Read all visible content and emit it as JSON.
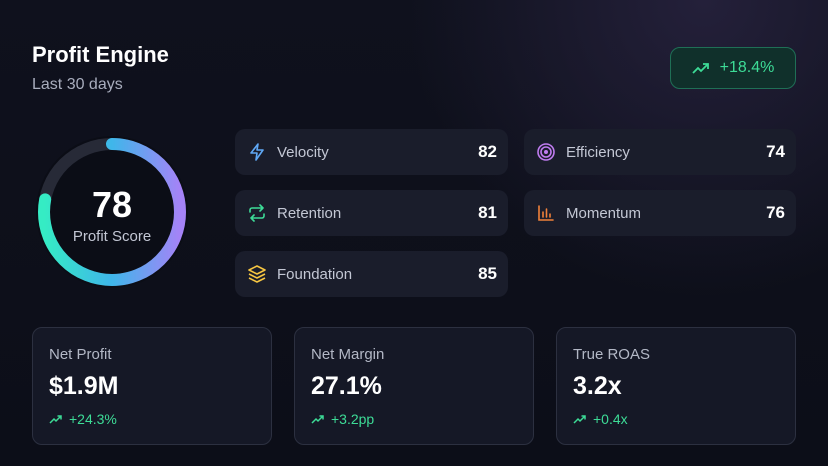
{
  "header": {
    "title": "Profit Engine",
    "subtitle": "Last 30 days",
    "change": "+18.4%"
  },
  "gauge": {
    "score": 78,
    "label": "Profit Score"
  },
  "metrics": [
    {
      "label": "Velocity",
      "value": 82
    },
    {
      "label": "Efficiency",
      "value": 74
    },
    {
      "label": "Retention",
      "value": 81
    },
    {
      "label": "Momentum",
      "value": 76
    },
    {
      "label": "Foundation",
      "value": 85
    }
  ],
  "kpis": [
    {
      "label": "Net Profit",
      "value": "$1.9M",
      "change": "+24.3%"
    },
    {
      "label": "Net Margin",
      "value": "27.1%",
      "change": "+3.2pp"
    },
    {
      "label": "True ROAS",
      "value": "3.2x",
      "change": "+0.4x"
    }
  ]
}
